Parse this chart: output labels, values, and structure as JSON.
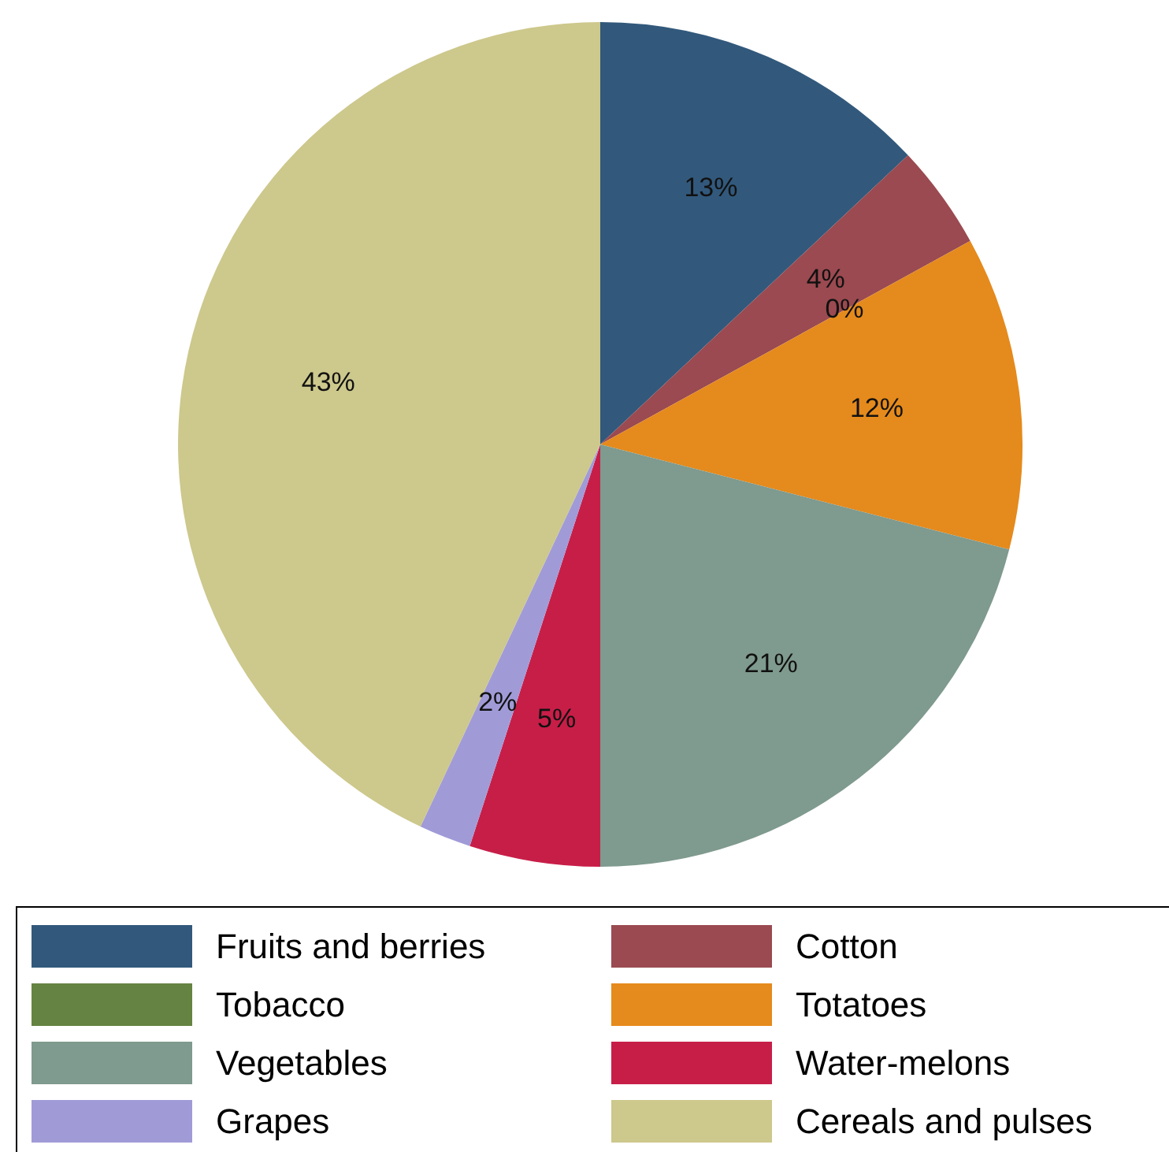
{
  "chart_data": {
    "type": "pie",
    "categories": [
      "Fruits and berries",
      "Cotton",
      "Tobacco",
      "Totatoes",
      "Vegetables",
      "Water-melons",
      "Grapes",
      "Cereals and pulses"
    ],
    "values": [
      13,
      4,
      0,
      12,
      21,
      5,
      2,
      43
    ],
    "value_labels": [
      "13%",
      "4%",
      "0%",
      "12%",
      "21%",
      "5%",
      "2%",
      "43%"
    ],
    "colors": [
      "#32597c",
      "#9a4a50",
      "#658342",
      "#e58a1c",
      "#7f9a8e",
      "#c71e48",
      "#a09bd7",
      "#cdc88c"
    ],
    "legend": "bottom"
  }
}
